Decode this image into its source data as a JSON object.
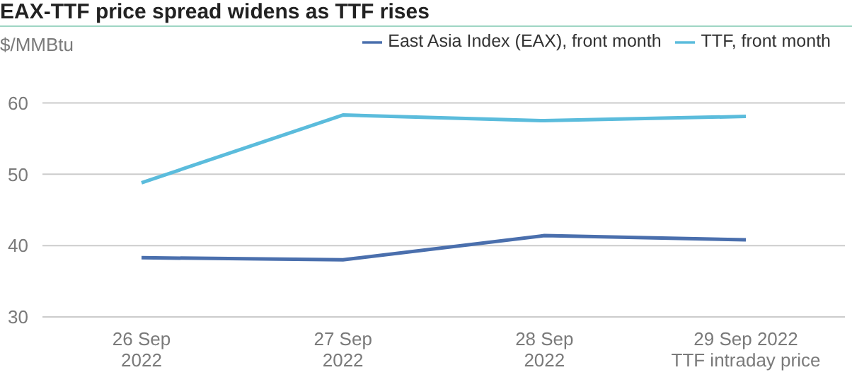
{
  "chart_data": {
    "type": "line",
    "title": "EAX-TTF price spread widens as TTF rises",
    "ylabel": "$/MMBtu",
    "categories": [
      "26 Sep\n2022",
      "27 Sep\n2022",
      "28 Sep\n2022",
      "29 Sep 2022\nTTF intraday price"
    ],
    "series": [
      {
        "name": "East Asia Index (EAX), front month",
        "color": "#4a6fad",
        "values": [
          38.3,
          38.0,
          41.4,
          40.8
        ]
      },
      {
        "name": "TTF, front month",
        "color": "#5bbcdc",
        "values": [
          48.8,
          58.3,
          57.5,
          58.1
        ]
      }
    ],
    "ylim": [
      30,
      60
    ],
    "yticks": [
      30,
      40,
      50,
      60
    ],
    "grid": "y",
    "legend": "top right",
    "marker": "none",
    "line_style": "solid"
  }
}
